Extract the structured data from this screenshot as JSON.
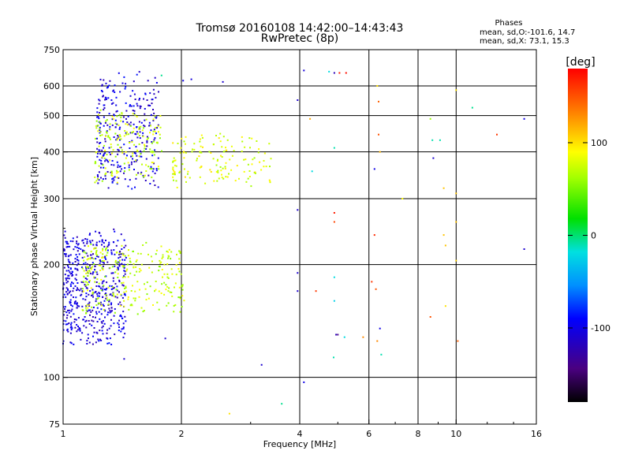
{
  "chart_data": {
    "type": "scatter",
    "title": "Tromsø 20160108 14:42:00–14:43:43",
    "subtitle": "RwPretec (8p)",
    "xlabel": "Frequency [MHz]",
    "ylabel": "Stationary phase Virtual Height [km]",
    "x_scale": "log",
    "y_scale": "log",
    "xlim": [
      1,
      16
    ],
    "ylim": [
      75,
      750
    ],
    "x_ticks": [
      "1",
      "2",
      "4",
      "6",
      "8",
      "10",
      "16"
    ],
    "y_ticks": [
      "75",
      "100",
      "200",
      "300",
      "400",
      "500",
      "600",
      "750"
    ],
    "grid": true,
    "stats": {
      "heading": "Phases",
      "line_o": "mean, sd,O:-101.6, 14.7",
      "line_x": "mean, sd,X:  73.1, 15.3"
    },
    "colorbar": {
      "label": "[deg]",
      "ticks": [
        "100",
        "0",
        "-100"
      ],
      "range": [
        -180,
        180
      ]
    },
    "clusters": [
      {
        "name": "lower-O-blue",
        "x": [
          1.0,
          1.45
        ],
        "y": [
          120,
          255
        ],
        "phase": -105,
        "count": 520
      },
      {
        "name": "lower-X-green",
        "x": [
          1.12,
          2.05
        ],
        "y": [
          145,
          230
        ],
        "phase": 72,
        "count": 280
      },
      {
        "name": "upper-O-blue",
        "x": [
          1.22,
          1.75
        ],
        "y": [
          310,
          660
        ],
        "phase": -105,
        "count": 300
      },
      {
        "name": "upper-X-green",
        "x": [
          1.2,
          1.8
        ],
        "y": [
          330,
          520
        ],
        "phase": 72,
        "count": 170
      },
      {
        "name": "upper-2MHz-mixed",
        "x": [
          1.9,
          3.4
        ],
        "y": [
          320,
          450
        ],
        "phase": 80,
        "count": 150
      }
    ],
    "points": [
      {
        "x": 1.0,
        "y": 123,
        "phase": -100
      },
      {
        "x": 1.43,
        "y": 112,
        "phase": -110
      },
      {
        "x": 1.82,
        "y": 127,
        "phase": -110
      },
      {
        "x": 1.78,
        "y": 640,
        "phase": -5
      },
      {
        "x": 2.02,
        "y": 620,
        "phase": -100
      },
      {
        "x": 2.12,
        "y": 625,
        "phase": -105
      },
      {
        "x": 2.55,
        "y": 615,
        "phase": -110
      },
      {
        "x": 2.65,
        "y": 80,
        "phase": 100
      },
      {
        "x": 3.2,
        "y": 108,
        "phase": -110
      },
      {
        "x": 3.6,
        "y": 85,
        "phase": -5
      },
      {
        "x": 3.95,
        "y": 550,
        "phase": -110
      },
      {
        "x": 3.95,
        "y": 280,
        "phase": -110
      },
      {
        "x": 3.95,
        "y": 190,
        "phase": -110
      },
      {
        "x": 3.95,
        "y": 170,
        "phase": -110
      },
      {
        "x": 4.1,
        "y": 97,
        "phase": -100
      },
      {
        "x": 4.1,
        "y": 660,
        "phase": -105
      },
      {
        "x": 4.25,
        "y": 490,
        "phase": 120
      },
      {
        "x": 4.3,
        "y": 355,
        "phase": -20
      },
      {
        "x": 4.4,
        "y": 170,
        "phase": 160
      },
      {
        "x": 4.75,
        "y": 655,
        "phase": -20
      },
      {
        "x": 4.9,
        "y": 650,
        "phase": -120
      },
      {
        "x": 5.05,
        "y": 650,
        "phase": 170
      },
      {
        "x": 5.25,
        "y": 650,
        "phase": 175
      },
      {
        "x": 4.9,
        "y": 410,
        "phase": -10
      },
      {
        "x": 4.9,
        "y": 275,
        "phase": 170
      },
      {
        "x": 4.9,
        "y": 260,
        "phase": 155
      },
      {
        "x": 4.9,
        "y": 185,
        "phase": -20
      },
      {
        "x": 4.9,
        "y": 160,
        "phase": -25
      },
      {
        "x": 4.95,
        "y": 130,
        "phase": -120
      },
      {
        "x": 5.0,
        "y": 130,
        "phase": -140
      },
      {
        "x": 5.2,
        "y": 128,
        "phase": -20
      },
      {
        "x": 4.88,
        "y": 113,
        "phase": -10
      },
      {
        "x": 5.8,
        "y": 128,
        "phase": 130
      },
      {
        "x": 6.1,
        "y": 180,
        "phase": 160
      },
      {
        "x": 6.2,
        "y": 240,
        "phase": 165
      },
      {
        "x": 6.2,
        "y": 360,
        "phase": -100
      },
      {
        "x": 6.3,
        "y": 600,
        "phase": 100
      },
      {
        "x": 6.35,
        "y": 545,
        "phase": 145
      },
      {
        "x": 6.35,
        "y": 445,
        "phase": 150
      },
      {
        "x": 6.4,
        "y": 400,
        "phase": 115
      },
      {
        "x": 6.4,
        "y": 135,
        "phase": -100
      },
      {
        "x": 6.45,
        "y": 115,
        "phase": -10
      },
      {
        "x": 6.3,
        "y": 125,
        "phase": 130
      },
      {
        "x": 6.25,
        "y": 172,
        "phase": 150
      },
      {
        "x": 7.3,
        "y": 300,
        "phase": 90
      },
      {
        "x": 8.6,
        "y": 490,
        "phase": 60
      },
      {
        "x": 8.7,
        "y": 430,
        "phase": -10
      },
      {
        "x": 8.75,
        "y": 385,
        "phase": -110
      },
      {
        "x": 8.6,
        "y": 145,
        "phase": 150
      },
      {
        "x": 9.1,
        "y": 430,
        "phase": -10
      },
      {
        "x": 9.3,
        "y": 320,
        "phase": 110
      },
      {
        "x": 9.3,
        "y": 240,
        "phase": 110
      },
      {
        "x": 9.4,
        "y": 225,
        "phase": 110
      },
      {
        "x": 9.4,
        "y": 155,
        "phase": 100
      },
      {
        "x": 10.0,
        "y": 585,
        "phase": 100
      },
      {
        "x": 10.0,
        "y": 310,
        "phase": 110
      },
      {
        "x": 10.0,
        "y": 260,
        "phase": 110
      },
      {
        "x": 10.0,
        "y": 205,
        "phase": 105
      },
      {
        "x": 10.1,
        "y": 125,
        "phase": 145
      },
      {
        "x": 11.0,
        "y": 525,
        "phase": -5
      },
      {
        "x": 12.7,
        "y": 445,
        "phase": 160
      },
      {
        "x": 14.9,
        "y": 490,
        "phase": -100
      },
      {
        "x": 14.9,
        "y": 220,
        "phase": -110
      }
    ]
  }
}
